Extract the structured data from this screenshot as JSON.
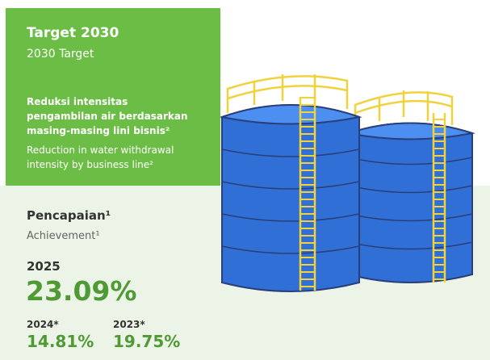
{
  "header": {
    "title": "Target 2030",
    "subtitle": "2030 Target"
  },
  "target": {
    "label_id": [
      "Reduksi intensitas",
      "pengambilan air berdasarkan",
      "masing-masing lini bisnis²"
    ],
    "label_en": [
      "Reduction in water withdrawal",
      "intensity by business line²"
    ]
  },
  "achievement": {
    "title_id": "Pencapaian¹",
    "title_en": "Achievement¹",
    "current": {
      "year": "2025",
      "value": "23.09%"
    },
    "previous": [
      {
        "year": "2024*",
        "value": "14.81%"
      },
      {
        "year": "2023*",
        "value": "19.75%"
      }
    ]
  }
}
